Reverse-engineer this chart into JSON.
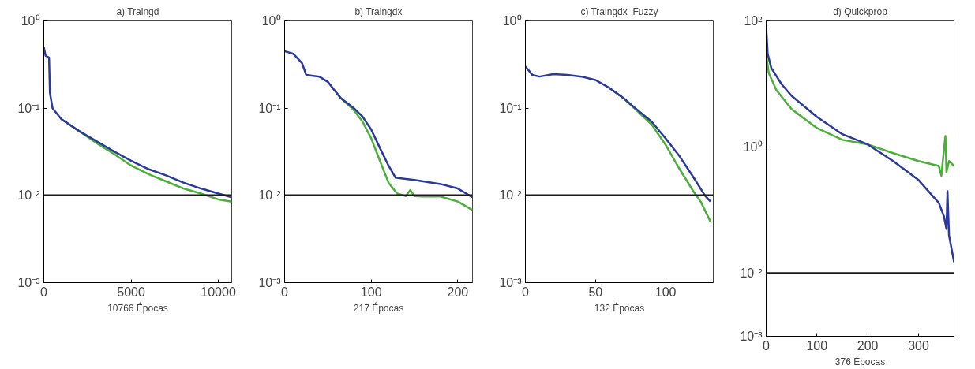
{
  "chart_data": [
    {
      "type": "line",
      "title": "a) Traingd",
      "xlabel": "10766 Épocas",
      "log": "y",
      "xlim": [
        0,
        10766
      ],
      "ylim": [
        0.001,
        1
      ],
      "xticks": [
        0,
        5000,
        10000
      ],
      "yticks": [
        {
          "value": 0.001,
          "label": "10⁻³"
        },
        {
          "value": 0.01,
          "label": "10⁻²"
        },
        {
          "value": 0.1,
          "label": "10⁻¹"
        },
        {
          "value": 1,
          "label": "10⁰"
        }
      ],
      "ref_lines": [
        {
          "axis": "y",
          "value": 0.01,
          "color": "#1a1a1a"
        }
      ],
      "series": [
        {
          "color": "#4caf3a",
          "x": [
            1000,
            2000,
            3000,
            4000,
            5000,
            6000,
            7000,
            8000,
            9000,
            10000,
            10766
          ],
          "values": [
            0.075,
            0.055,
            0.04,
            0.03,
            0.022,
            0.0175,
            0.0145,
            0.012,
            0.0105,
            0.009,
            0.0085
          ]
        },
        {
          "color": "#2b3a9a",
          "x": [
            0,
            100,
            300,
            350,
            500,
            1000,
            2000,
            3000,
            4000,
            5000,
            6000,
            7000,
            8000,
            9000,
            10000,
            10766
          ],
          "values": [
            0.5,
            0.4,
            0.38,
            0.15,
            0.1,
            0.075,
            0.055,
            0.042,
            0.032,
            0.025,
            0.02,
            0.017,
            0.014,
            0.012,
            0.0105,
            0.0095
          ]
        }
      ]
    },
    {
      "type": "line",
      "title": "b) Traingdx",
      "xlabel": "217 Épocas",
      "log": "y",
      "xlim": [
        0,
        217
      ],
      "ylim": [
        0.001,
        1
      ],
      "xticks": [
        0,
        100,
        200
      ],
      "yticks": [
        {
          "value": 0.001,
          "label": "10⁻³"
        },
        {
          "value": 0.01,
          "label": "10⁻²"
        },
        {
          "value": 0.1,
          "label": "10⁻¹"
        },
        {
          "value": 1,
          "label": "10⁰"
        }
      ],
      "ref_lines": [
        {
          "axis": "y",
          "value": 0.01,
          "color": "#1a1a1a"
        }
      ],
      "series": [
        {
          "color": "#4caf3a",
          "x": [
            60,
            65,
            80,
            90,
            100,
            110,
            120,
            130,
            140,
            145,
            150,
            160,
            180,
            200,
            217
          ],
          "values": [
            0.15,
            0.13,
            0.095,
            0.07,
            0.045,
            0.025,
            0.014,
            0.0105,
            0.0098,
            0.0115,
            0.0098,
            0.0097,
            0.0097,
            0.0085,
            0.0068
          ]
        },
        {
          "color": "#2b3a9a",
          "x": [
            0,
            10,
            20,
            25,
            40,
            50,
            60,
            65,
            80,
            90,
            100,
            110,
            120,
            128,
            150,
            180,
            200,
            217
          ],
          "values": [
            0.45,
            0.42,
            0.33,
            0.24,
            0.23,
            0.2,
            0.15,
            0.13,
            0.1,
            0.08,
            0.057,
            0.035,
            0.022,
            0.016,
            0.015,
            0.0135,
            0.012,
            0.0095
          ]
        }
      ]
    },
    {
      "type": "line",
      "title": "c) Traingdx_Fuzzy",
      "xlabel": "132 Épocas",
      "log": "y",
      "xlim": [
        0,
        134
      ],
      "ylim": [
        0.001,
        1
      ],
      "xticks": [
        0,
        50,
        100
      ],
      "yticks": [
        {
          "value": 0.001,
          "label": "10⁻³"
        },
        {
          "value": 0.01,
          "label": "10⁻²"
        },
        {
          "value": 0.1,
          "label": "10⁻¹"
        },
        {
          "value": 1,
          "label": "10⁰"
        }
      ],
      "ref_lines": [
        {
          "axis": "y",
          "value": 0.01,
          "color": "#1a1a1a"
        }
      ],
      "series": [
        {
          "color": "#4caf3a",
          "x": [
            60,
            70,
            80,
            90,
            100,
            110,
            120,
            125,
            132
          ],
          "values": [
            0.17,
            0.13,
            0.092,
            0.065,
            0.038,
            0.02,
            0.011,
            0.0085,
            0.005
          ]
        },
        {
          "color": "#2b3a9a",
          "x": [
            0,
            5,
            10,
            20,
            30,
            40,
            50,
            60,
            70,
            80,
            90,
            100,
            110,
            120,
            128,
            132
          ],
          "values": [
            0.3,
            0.24,
            0.23,
            0.245,
            0.24,
            0.23,
            0.21,
            0.17,
            0.13,
            0.095,
            0.07,
            0.045,
            0.028,
            0.016,
            0.01,
            0.0085
          ]
        }
      ]
    },
    {
      "type": "line",
      "title": "d) Quickprop",
      "xlabel": "376 Épocas",
      "log": "y",
      "xlim": [
        0,
        370
      ],
      "ylim": [
        0.001,
        100
      ],
      "xticks": [
        0,
        100,
        200,
        300
      ],
      "yticks": [
        {
          "value": 0.001,
          "label": "10⁻³"
        },
        {
          "value": 0.01,
          "label": "10⁻²"
        },
        {
          "value": 1,
          "label": "10⁰"
        },
        {
          "value": 100,
          "label": "10²"
        }
      ],
      "ref_lines": [
        {
          "axis": "y",
          "value": 0.01,
          "color": "#1a1a1a"
        }
      ],
      "series": [
        {
          "color": "#4caf3a",
          "x": [
            0,
            5,
            20,
            50,
            100,
            150,
            200,
            250,
            300,
            340,
            345,
            350,
            353,
            355,
            360,
            370
          ],
          "values": [
            30,
            15,
            8,
            4,
            2,
            1.3,
            1.1,
            0.8,
            0.6,
            0.5,
            0.35,
            0.9,
            1.5,
            0.4,
            0.6,
            0.5
          ]
        },
        {
          "color": "#2b3a9a",
          "x": [
            0,
            3,
            10,
            30,
            50,
            100,
            150,
            200,
            250,
            300,
            340,
            350,
            355,
            357,
            360,
            370
          ],
          "values": [
            80,
            30,
            18,
            10,
            6.5,
            3,
            1.6,
            1.1,
            0.6,
            0.3,
            0.13,
            0.08,
            0.05,
            0.2,
            0.04,
            0.015
          ]
        }
      ]
    }
  ]
}
